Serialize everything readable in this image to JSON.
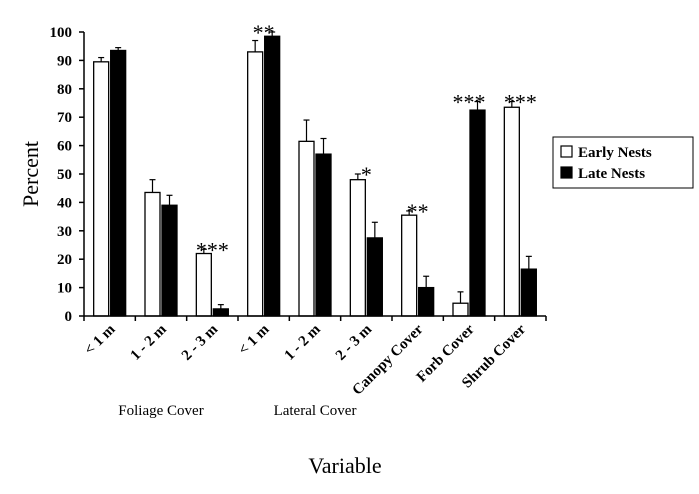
{
  "chart_data": {
    "type": "bar",
    "title": "",
    "xlabel": "Variable",
    "ylabel": "Percent",
    "ylim": [
      0,
      100
    ],
    "yticks": [
      0,
      10,
      20,
      30,
      40,
      50,
      60,
      70,
      80,
      90,
      100
    ],
    "grid": false,
    "legend_position": "right",
    "categories": [
      "< 1 m",
      "1 - 2 m",
      "2 - 3 m",
      "< 1 m",
      "1 - 2 m",
      "2 - 3 m",
      "Canopy Cover",
      "Forb Cover",
      "Shrub Cover"
    ],
    "groups": [
      {
        "label": "Foliage Cover",
        "categories": [
          0,
          1,
          2
        ]
      },
      {
        "label": "Lateral Cover",
        "categories": [
          3,
          4,
          5
        ]
      }
    ],
    "series": [
      {
        "name": "Early Nests",
        "color": "#ffffff",
        "values": [
          89.5,
          43.5,
          22,
          93,
          61.5,
          48,
          35.5,
          4.5,
          73.5
        ],
        "errors": [
          1.5,
          4.5,
          1.5,
          4,
          7.5,
          2,
          1.5,
          4,
          2
        ]
      },
      {
        "name": "Late Nests",
        "color": "#000000",
        "values": [
          93.5,
          39,
          2.5,
          98.5,
          57,
          27.5,
          10,
          72.5,
          16.5
        ],
        "errors": [
          1,
          3.5,
          1.5,
          1.5,
          5.5,
          5.5,
          4,
          3,
          4.5
        ]
      }
    ],
    "significance": [
      "",
      "",
      "***",
      "**",
      "",
      "*",
      "**",
      "***",
      "***"
    ]
  }
}
